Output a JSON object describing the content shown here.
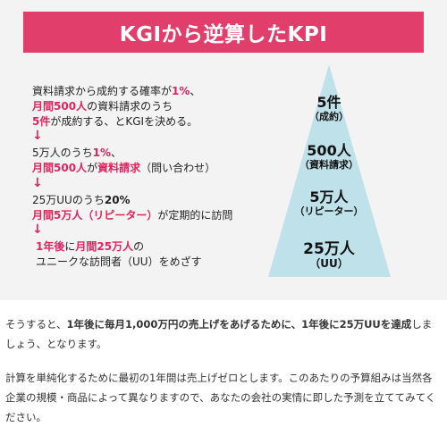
{
  "title": "KGIから逆算したKPI",
  "steps": {
    "step1": {
      "line1_a": "資料請求から成約する確率が",
      "line1_b": "1%",
      "line1_c": "、",
      "line2_a": "月間500人",
      "line2_b": "の資料請求のうち",
      "line3_a": "5件",
      "line3_b": "が成約する、とKGIを決める。"
    },
    "arrow": "↓",
    "step2": {
      "line1_a": "5万人のうち",
      "line1_b": "1%",
      "line1_c": "、",
      "line2_a": "月間500人",
      "line2_b": "が",
      "line2_c": "資料請求",
      "line2_d": "（問い合わせ）"
    },
    "step3": {
      "line1_a": "25万UUのうち",
      "line1_b": "20%",
      "line2_a": "月間5万人（リピーター）",
      "line2_b": "が定期的に訪問"
    },
    "step4": {
      "line1_a": "1年後",
      "line1_b": "に",
      "line1_c": "月間25万人",
      "line1_d": "の",
      "line2": "ユニークな訪問者（UU）をめざす"
    }
  },
  "pyramid": {
    "color": "#bfe2ea",
    "tiers": [
      {
        "value": "5件",
        "sub": "（成約）"
      },
      {
        "value": "500人",
        "sub": "（資料請求）"
      },
      {
        "value": "5万人",
        "sub": "（リピーター）"
      },
      {
        "value": "25万人",
        "sub": "（UU）"
      }
    ]
  },
  "paragraphs": {
    "p1_a": "そうすると、",
    "p1_b": "1年後に毎月1,000万円の売上げをあげるために、1年後に25万UUを達成",
    "p1_c": "しましょう、となります。",
    "p2": "計算を単純化するために最初の1年間は売上げゼロとします。このあたりの予算組みは当然各企業の規模・商品によって異なりますので、あなたの会社の実情に即した予測を立ててみてください。"
  },
  "colors": {
    "banner": "#e13e6c",
    "accent_red": "#e0245e",
    "panel_bg": "#f3f3f3"
  }
}
